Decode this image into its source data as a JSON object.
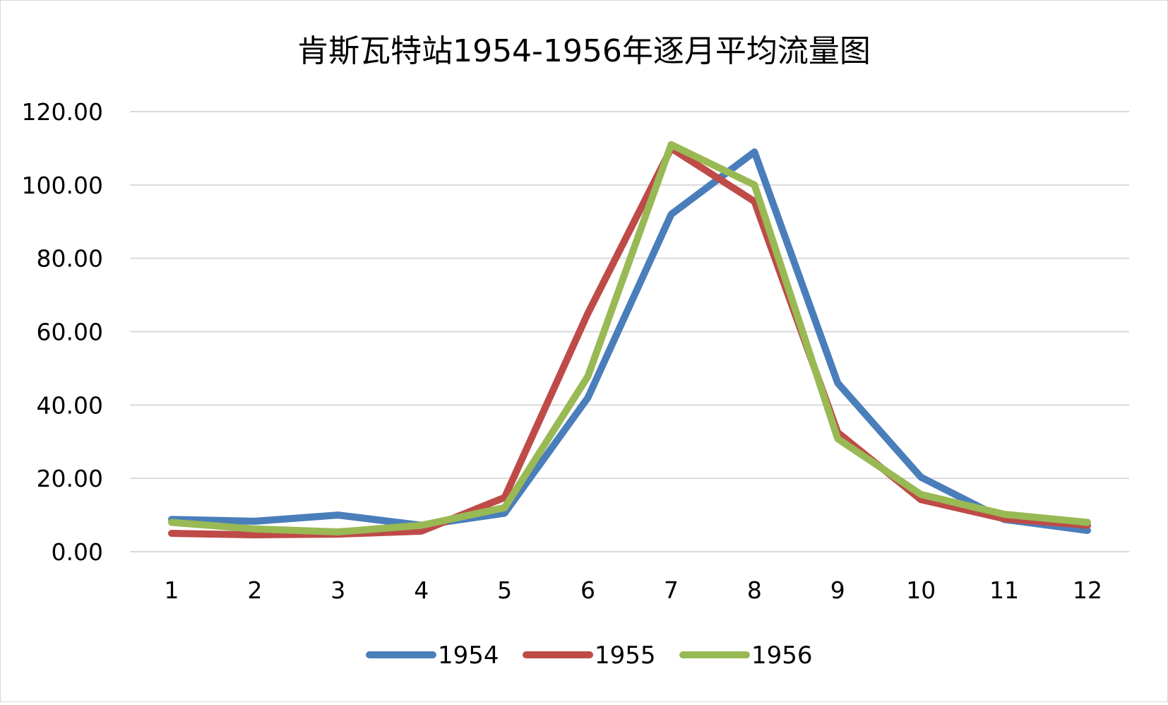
{
  "chart_data": {
    "type": "line",
    "title": "肯斯瓦特站1954-1956年逐月平均流量图",
    "xlabel": "",
    "ylabel": "",
    "categories": [
      "1",
      "2",
      "3",
      "4",
      "5",
      "6",
      "7",
      "8",
      "9",
      "10",
      "11",
      "12"
    ],
    "ylim": [
      0,
      120
    ],
    "yticks": [
      "0.00",
      "20.00",
      "40.00",
      "60.00",
      "80.00",
      "100.00",
      "120.00"
    ],
    "grid": true,
    "legend_position": "bottom",
    "series": [
      {
        "name": "1954",
        "color": "#4a7ebb",
        "values": [
          8.8,
          8.3,
          10.0,
          7.2,
          10.5,
          42.0,
          92.0,
          109.0,
          46.0,
          20.3,
          8.8,
          5.8
        ]
      },
      {
        "name": "1955",
        "color": "#be4b48",
        "values": [
          5.0,
          4.6,
          4.8,
          5.6,
          14.8,
          65.0,
          110.0,
          95.5,
          32.5,
          14.2,
          9.0,
          7.2
        ]
      },
      {
        "name": "1956",
        "color": "#98b954",
        "values": [
          8.0,
          6.2,
          5.4,
          7.2,
          12.0,
          47.8,
          111.0,
          100.0,
          30.8,
          15.6,
          10.2,
          8.0
        ]
      }
    ]
  }
}
